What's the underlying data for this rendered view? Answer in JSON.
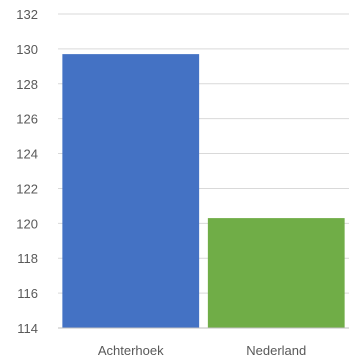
{
  "chart_data": {
    "type": "bar",
    "categories": [
      "Achterhoek",
      "Nederland"
    ],
    "values": [
      129.7,
      120.3
    ],
    "colors": [
      "#4472c4",
      "#70ad47"
    ],
    "ylim": [
      114,
      132
    ],
    "yticks": [
      114,
      116,
      118,
      120,
      122,
      124,
      126,
      128,
      130,
      132
    ],
    "grid": true,
    "title": "",
    "xlabel": "",
    "ylabel": ""
  }
}
